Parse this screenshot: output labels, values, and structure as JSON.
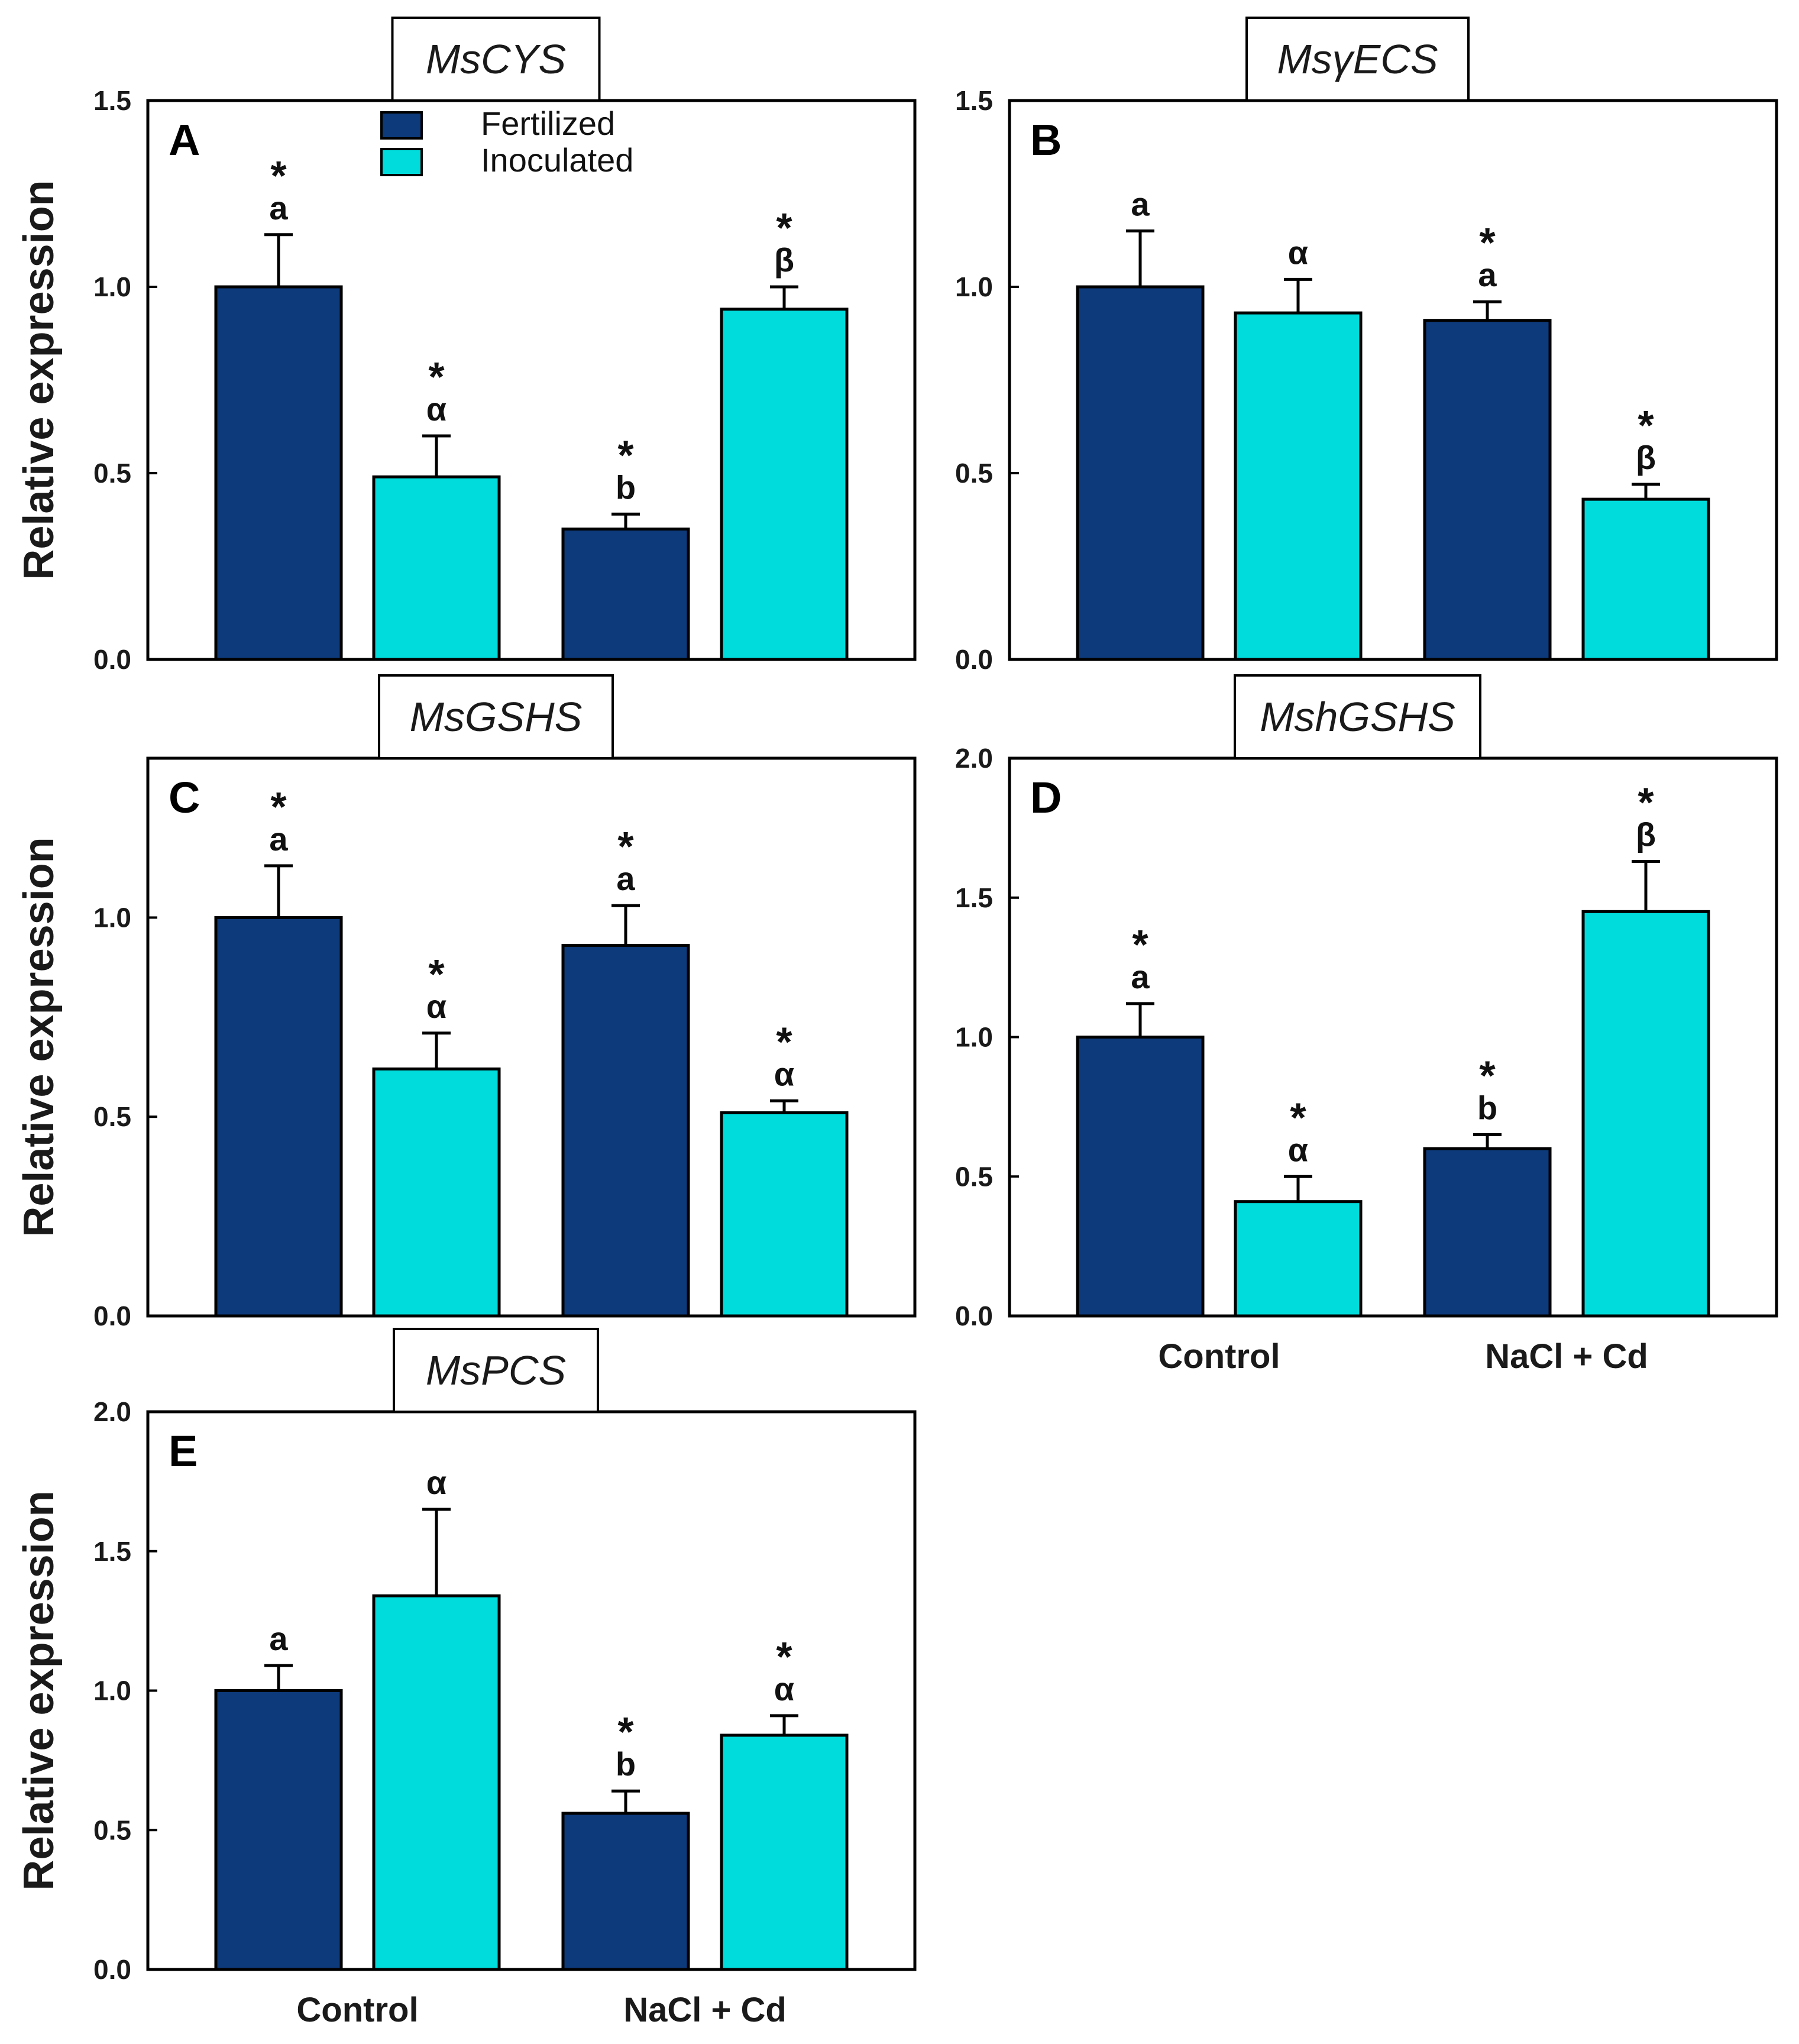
{
  "chart_data": [
    {
      "type": "bar",
      "panel_label": "A",
      "gene": "MsCYS",
      "ylabel": "Relative expression",
      "ylim": [
        0,
        1.5
      ],
      "ticks": [
        "0.0",
        "0.5",
        "1.0",
        "1.5"
      ],
      "categories": [
        "Control",
        "NaCl + Cd"
      ],
      "show_categories": false,
      "series": [
        {
          "name": "Fertilized",
          "color": "#0d3a7a",
          "values": [
            1.0,
            0.35
          ],
          "errors": [
            0.14,
            0.04
          ],
          "labels": [
            [
              "*",
              "a"
            ],
            [
              "*",
              "b"
            ]
          ]
        },
        {
          "name": "Inoculated",
          "color": "#00dcdc",
          "values": [
            0.49,
            0.94
          ],
          "errors": [
            0.11,
            0.06
          ],
          "labels": [
            [
              "*",
              "α"
            ],
            [
              "*",
              "β"
            ]
          ]
        }
      ]
    },
    {
      "type": "bar",
      "panel_label": "B",
      "gene": "MsγECS",
      "ylabel": "",
      "ylim": [
        0,
        1.5
      ],
      "ticks": [
        "0.0",
        "0.5",
        "1.0",
        "1.5"
      ],
      "categories": [
        "Control",
        "NaCl + Cd"
      ],
      "show_categories": false,
      "series": [
        {
          "name": "Fertilized",
          "color": "#0d3a7a",
          "values": [
            1.0,
            0.91
          ],
          "errors": [
            0.15,
            0.05
          ],
          "labels": [
            [
              "a"
            ],
            [
              "*",
              "a"
            ]
          ]
        },
        {
          "name": "Inoculated",
          "color": "#00dcdc",
          "values": [
            0.93,
            0.43
          ],
          "errors": [
            0.09,
            0.04
          ],
          "labels": [
            [
              "α"
            ],
            [
              "*",
              "β"
            ]
          ]
        }
      ]
    },
    {
      "type": "bar",
      "panel_label": "C",
      "gene": "MsGSHS",
      "ylabel": "Relative expression",
      "ylim": [
        0,
        1.4
      ],
      "ticks": [
        "0.0",
        "0.5",
        "1.0"
      ],
      "categories": [
        "Control",
        "NaCl + Cd"
      ],
      "show_categories": false,
      "series": [
        {
          "name": "Fertilized",
          "color": "#0d3a7a",
          "values": [
            1.0,
            0.93
          ],
          "errors": [
            0.13,
            0.1
          ],
          "labels": [
            [
              "*",
              "a"
            ],
            [
              "*",
              "a"
            ]
          ]
        },
        {
          "name": "Inoculated",
          "color": "#00dcdc",
          "values": [
            0.62,
            0.51
          ],
          "errors": [
            0.09,
            0.03
          ],
          "labels": [
            [
              "*",
              "α"
            ],
            [
              "*",
              "α"
            ]
          ]
        }
      ]
    },
    {
      "type": "bar",
      "panel_label": "D",
      "gene": "MshGSHS",
      "ylabel": "",
      "ylim": [
        0,
        2.0
      ],
      "ticks": [
        "0.0",
        "0.5",
        "1.0",
        "1.5",
        "2.0"
      ],
      "categories": [
        "Control",
        "NaCl + Cd"
      ],
      "show_categories": true,
      "series": [
        {
          "name": "Fertilized",
          "color": "#0d3a7a",
          "values": [
            1.0,
            0.6
          ],
          "errors": [
            0.12,
            0.05
          ],
          "labels": [
            [
              "*",
              "a"
            ],
            [
              "*",
              "b"
            ]
          ]
        },
        {
          "name": "Inoculated",
          "color": "#00dcdc",
          "values": [
            0.41,
            1.45
          ],
          "errors": [
            0.09,
            0.18
          ],
          "labels": [
            [
              "*",
              "α"
            ],
            [
              "*",
              "β"
            ]
          ]
        }
      ]
    },
    {
      "type": "bar",
      "panel_label": "E",
      "gene": "MsPCS",
      "ylabel": "Relative expression",
      "ylim": [
        0,
        2.0
      ],
      "ticks": [
        "0.0",
        "0.5",
        "1.0",
        "1.5",
        "2.0"
      ],
      "categories": [
        "Control",
        "NaCl + Cd"
      ],
      "show_categories": true,
      "series": [
        {
          "name": "Fertilized",
          "color": "#0d3a7a",
          "values": [
            1.0,
            0.56
          ],
          "errors": [
            0.09,
            0.08
          ],
          "labels": [
            [
              "a"
            ],
            [
              "*",
              "b"
            ]
          ]
        },
        {
          "name": "Inoculated",
          "color": "#00dcdc",
          "values": [
            1.34,
            0.84
          ],
          "errors": [
            0.31,
            0.07
          ],
          "labels": [
            [
              "α"
            ],
            [
              "*",
              "α"
            ]
          ]
        }
      ]
    }
  ],
  "legend": {
    "items": [
      {
        "label": "Fertilized",
        "color": "#0d3a7a"
      },
      {
        "label": "Inoculated",
        "color": "#00dcdc"
      }
    ]
  }
}
